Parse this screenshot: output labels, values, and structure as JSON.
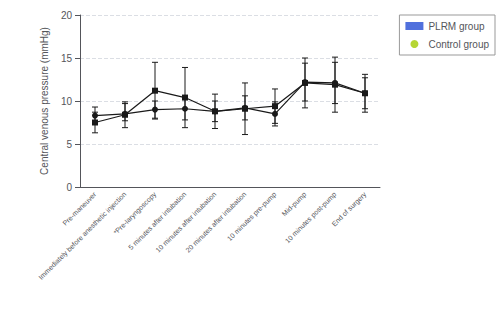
{
  "chart_data": {
    "type": "line",
    "ylabel": "Central venous pressure (mmHg)",
    "categories": [
      "Pre-maneuver",
      "Immediately before anesthetic injection",
      "*Pre-laryngoscopy",
      "5 minutes after intubation",
      "10 minutes after intubation",
      "20 minutes after intubation",
      "10 minutes pre-pump",
      "Mid-pump",
      "10 minutes post-pump",
      "End of surgery"
    ],
    "series": [
      {
        "name": "PLRM group",
        "color": "#1a1a1a",
        "marker": "square",
        "values": [
          7.5,
          8.4,
          11.2,
          10.4,
          8.8,
          9.1,
          9.4,
          12.1,
          11.9,
          10.9
        ],
        "err_low": [
          1.2,
          1.5,
          3.3,
          3.5,
          2.0,
          3.0,
          2.0,
          2.9,
          3.2,
          2.2
        ],
        "err_high": [
          1.2,
          1.5,
          3.3,
          3.5,
          2.0,
          3.0,
          2.0,
          2.9,
          3.2,
          2.2
        ]
      },
      {
        "name": "Control group",
        "color": "#1a1a1a",
        "marker": "circle",
        "values": [
          8.3,
          8.5,
          9.0,
          9.1,
          8.8,
          9.2,
          8.5,
          12.2,
          12.1,
          10.9
        ],
        "err_low": [
          1.0,
          0.8,
          1.0,
          1.3,
          1.2,
          1.4,
          1.4,
          2.2,
          2.4,
          1.8
        ],
        "err_high": [
          1.0,
          1.2,
          1.0,
          1.3,
          1.2,
          1.4,
          1.4,
          2.2,
          2.4,
          1.8
        ]
      }
    ],
    "ylim": [
      0,
      20
    ],
    "yticks": [
      0,
      5,
      10,
      15,
      20
    ],
    "grid": true,
    "legend": "right"
  }
}
